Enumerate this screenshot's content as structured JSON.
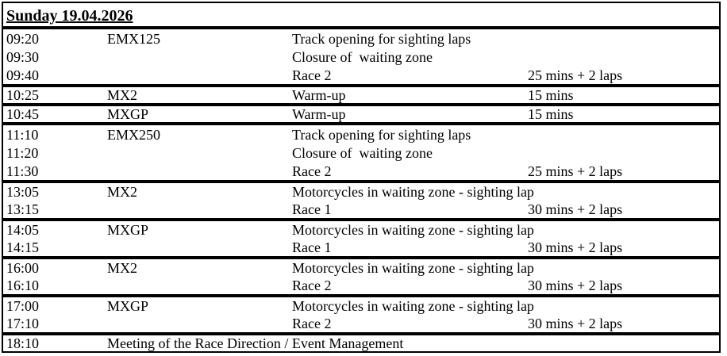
{
  "header": {
    "title": "Sunday 19.04.2026"
  },
  "groups": [
    {
      "rows": [
        {
          "time": "09:20",
          "class": "EMX125",
          "description": "Track opening for sighting laps",
          "duration": ""
        },
        {
          "time": "09:30",
          "class": "",
          "description": "Closure of  waiting zone",
          "duration": ""
        },
        {
          "time": "09:40",
          "class": "",
          "description": "Race 2",
          "duration": "25 mins + 2 laps"
        }
      ]
    },
    {
      "rows": [
        {
          "time": "10:25",
          "class": "MX2",
          "description": "Warm-up",
          "duration": "15 mins"
        }
      ]
    },
    {
      "rows": [
        {
          "time": "10:45",
          "class": "MXGP",
          "description": "Warm-up",
          "duration": "15 mins"
        }
      ]
    },
    {
      "rows": [
        {
          "time": "11:10",
          "class": "EMX250",
          "description": "Track opening for sighting laps",
          "duration": ""
        },
        {
          "time": "11:20",
          "class": "",
          "description": "Closure of  waiting zone",
          "duration": ""
        },
        {
          "time": "11:30",
          "class": "",
          "description": "Race 2",
          "duration": "25 mins + 2 laps"
        }
      ]
    },
    {
      "rows": [
        {
          "time": "13:05",
          "class": "MX2",
          "description": "Motorcycles in waiting zone - sighting lap",
          "duration": ""
        },
        {
          "time": "13:15",
          "class": "",
          "description": "Race 1",
          "duration": "30 mins + 2 laps"
        }
      ]
    },
    {
      "rows": [
        {
          "time": "14:05",
          "class": "MXGP",
          "description": "Motorcycles in waiting zone - sighting lap",
          "duration": ""
        },
        {
          "time": "14:15",
          "class": "",
          "description": "Race 1",
          "duration": "30 mins + 2 laps"
        }
      ]
    },
    {
      "rows": [
        {
          "time": "16:00",
          "class": "MX2",
          "description": "Motorcycles in waiting zone - sighting lap",
          "duration": ""
        },
        {
          "time": "16:10",
          "class": "",
          "description": "Race 2",
          "duration": "30 mins + 2 laps"
        }
      ]
    },
    {
      "rows": [
        {
          "time": "17:00",
          "class": "MXGP",
          "description": "Motorcycles in waiting zone - sighting lap",
          "duration": ""
        },
        {
          "time": "17:10",
          "class": "",
          "description": "Race 2",
          "duration": "30 mins + 2 laps"
        }
      ]
    },
    {
      "rows": [
        {
          "time": "18:10",
          "class": "Meeting of the Race Direction / Event Management",
          "description": "",
          "duration": ""
        }
      ]
    }
  ],
  "colors": {
    "text": "#000000",
    "border": "#000000",
    "background": "#ffffff"
  }
}
